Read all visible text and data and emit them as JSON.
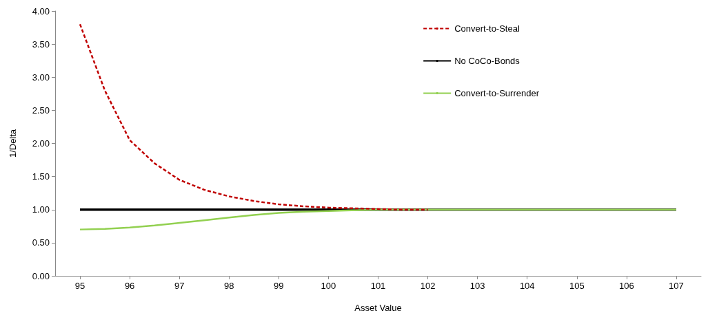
{
  "chart_data": {
    "type": "line",
    "xlabel": "Asset Value",
    "ylabel": "1/Delta",
    "xlim": [
      94.5,
      107.5
    ],
    "xticks": [
      95,
      96,
      97,
      98,
      99,
      100,
      101,
      102,
      103,
      104,
      105,
      106,
      107
    ],
    "ylim": [
      0,
      4
    ],
    "yticks": [
      {
        "value": 0,
        "label": "0.00"
      },
      {
        "value": 0.5,
        "label": "0.50"
      },
      {
        "value": 1,
        "label": "1.00"
      },
      {
        "value": 1.5,
        "label": "1.50"
      },
      {
        "value": 2,
        "label": "2.00"
      },
      {
        "value": 2.5,
        "label": "2.50"
      },
      {
        "value": 3,
        "label": "3.00"
      },
      {
        "value": 3.5,
        "label": "3.50"
      },
      {
        "value": 4,
        "label": "4.00"
      }
    ],
    "grid": false,
    "legend": "top right",
    "marker": "none",
    "series": [
      {
        "name": "Convert-to-Steal",
        "color": "#c00000",
        "line_style": "dashed",
        "x": [
          95,
          95.5,
          96,
          96.5,
          97,
          97.5,
          98,
          98.5,
          99,
          99.5,
          100,
          100.5,
          101,
          101.5,
          102
        ],
        "values": [
          3.8,
          2.8,
          2.05,
          1.7,
          1.45,
          1.3,
          1.2,
          1.13,
          1.08,
          1.05,
          1.03,
          1.02,
          1.01,
          1.0,
          1.0
        ]
      },
      {
        "name": "No CoCo-Bonds",
        "color": "#000000",
        "line_style": "solid",
        "x": [
          95,
          107
        ],
        "values": [
          1.0,
          1.0
        ]
      },
      {
        "name": "Convert-to-Surrender",
        "color": "#92d050",
        "line_style": "solid",
        "x": [
          95,
          95.5,
          96,
          96.5,
          97,
          97.5,
          98,
          98.5,
          99,
          99.5,
          100,
          100.5,
          101,
          102,
          107
        ],
        "values": [
          0.7,
          0.71,
          0.73,
          0.76,
          0.8,
          0.84,
          0.88,
          0.92,
          0.95,
          0.97,
          0.98,
          0.99,
          1.0,
          1.0,
          1.0
        ]
      }
    ]
  }
}
